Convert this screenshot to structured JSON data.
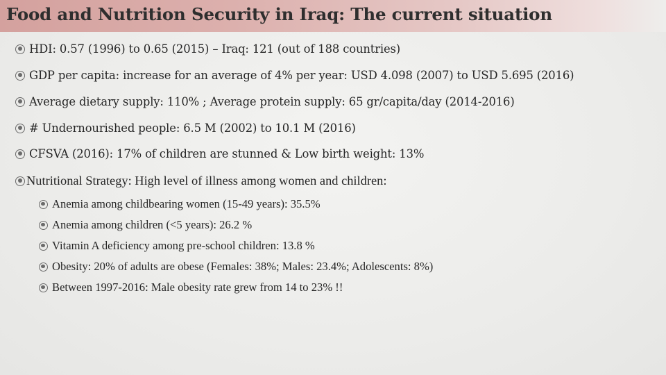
{
  "slide": {
    "title": "Food and Nutrition Security in Iraq: The current situation"
  },
  "bullets": [
    {
      "text": "HDI: 0.57 (1996) to 0.65 (2015) – Iraq: 121 (out of 188 countries)",
      "icon": "bullet-icon"
    },
    {
      "text": "GDP per capita: increase for an average of 4% per year: USD 4.098 (2007) to USD 5.695 (2016)",
      "icon": "bullet-icon"
    },
    {
      "text": "Average dietary supply: 110% ; Average protein supply: 65 gr/capita/day (2014-2016)",
      "icon": "bullet-icon"
    },
    {
      "text": "# Undernourished people: 6.5 M (2002) to 10.1 M (2016)",
      "icon": "bullet-icon"
    },
    {
      "text": "CFSVA (2016): 17% of children are stunned & Low birth weight: 13%",
      "icon": "bullet-icon"
    },
    {
      "text": "Nutritional Strategy: High level of illness among women and children:",
      "icon": "bullet-icon"
    }
  ],
  "sub_bullets": [
    {
      "text": "Anemia among childbearing women (15-49 years): 35.5%",
      "icon": "bullet-icon"
    },
    {
      "text": "Anemia among children (<5 years): 26.2 %",
      "icon": "bullet-icon"
    },
    {
      "text": "Vitamin A deficiency among pre-school children: 13.8 %",
      "icon": "bullet-icon"
    },
    {
      "text": "Obesity: 20% of adults are obese (Females: 38%; Males: 23.4%; Adolescents: 8%)",
      "icon": "bullet-icon"
    },
    {
      "text": "Between 1997-2016: Male obesity rate grew from 14 to 23% !!",
      "icon": "bullet-icon"
    }
  ],
  "colors": {
    "title_bar": "#d4a19e",
    "text": "#262626",
    "bullet": "#6b6b6b",
    "background": "#eeeeec"
  }
}
